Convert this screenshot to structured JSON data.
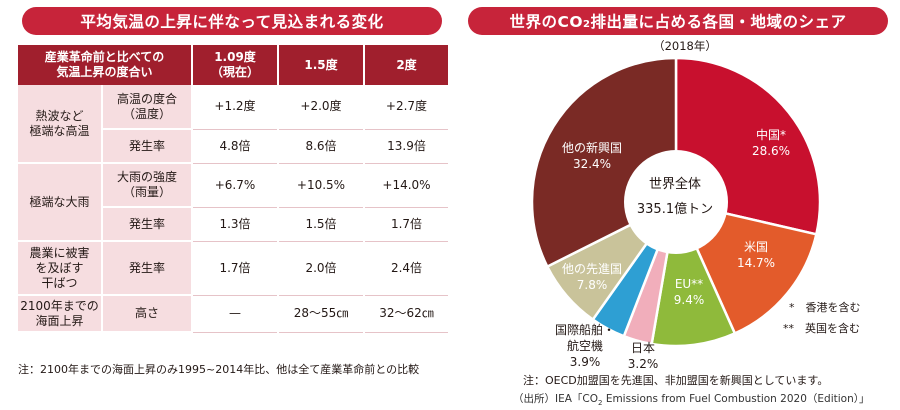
{
  "left_panel": {
    "title": "平均気温の上昇に伴なって見込まれる変化",
    "header": {
      "col0": "産業革命前と比べての\n気温上昇の度合い",
      "col1": "1.09度\n（現在）",
      "col2": "1.5度",
      "col3": "2度"
    },
    "rows": [
      {
        "group": "熱波など\n極端な高温",
        "label": "高温の度合\n（温度）",
        "values": [
          "+1.2度",
          "+2.0度",
          "+2.7度"
        ]
      },
      {
        "label": "発生率",
        "values": [
          "4.8倍",
          "8.6倍",
          "13.9倍"
        ]
      },
      {
        "group": "極端な大雨",
        "label": "大雨の強度\n（雨量）",
        "values": [
          "+6.7%",
          "+10.5%",
          "+14.0%"
        ]
      },
      {
        "label": "発生率",
        "values": [
          "1.3倍",
          "1.5倍",
          "1.7倍"
        ]
      },
      {
        "group": "農業に被害\nを及ぼす\n干ばつ",
        "label": "発生率",
        "values": [
          "1.7倍",
          "2.0倍",
          "2.4倍"
        ]
      },
      {
        "group": "2100年までの海面上昇",
        "label": "高さ",
        "values": [
          "—",
          "28～55㎝",
          "32～62㎝"
        ]
      }
    ],
    "note": "注：2100年までの海面上昇のみ1995~2014年比、他は全て産業革命前との比較"
  },
  "right_panel": {
    "title_pre": "世界のCO",
    "title_sub": "2",
    "title_post": "排出量に占める各国・地域のシェア",
    "year": "（2018年）",
    "center_line1": "世界全体",
    "center_line2": "335.1億トン",
    "legend1": "*　香港を含む",
    "legend2": "**　英国を含む",
    "note": "注：OECD加盟国を先進国、非加盟国を新興国としています。",
    "source_pre": "（出所）IEA「CO",
    "source_sub": "2",
    "source_post": " Emissions from Fuel Combustion 2020（Edition）」"
  },
  "chart_data": {
    "type": "pie",
    "title": "世界のCO2排出量に占める各国・地域のシェア",
    "subtitle": "（2018年）",
    "total": "335.1億トン",
    "slices": [
      {
        "label": "中国*",
        "value": 28.6,
        "color": "#c8102e"
      },
      {
        "label": "米国",
        "value": 14.7,
        "color": "#e35b2b"
      },
      {
        "label": "EU**",
        "value": 9.4,
        "color": "#8fba3b"
      },
      {
        "label": "日本",
        "value": 3.2,
        "color": "#f1aebb"
      },
      {
        "label": "国際船舶・航空機",
        "value": 3.9,
        "color": "#2e9fd3"
      },
      {
        "label": "他の先進国",
        "value": 7.8,
        "color": "#c9c39a"
      },
      {
        "label": "他の新興国",
        "value": 32.4,
        "color": "#7a2a25"
      }
    ]
  }
}
